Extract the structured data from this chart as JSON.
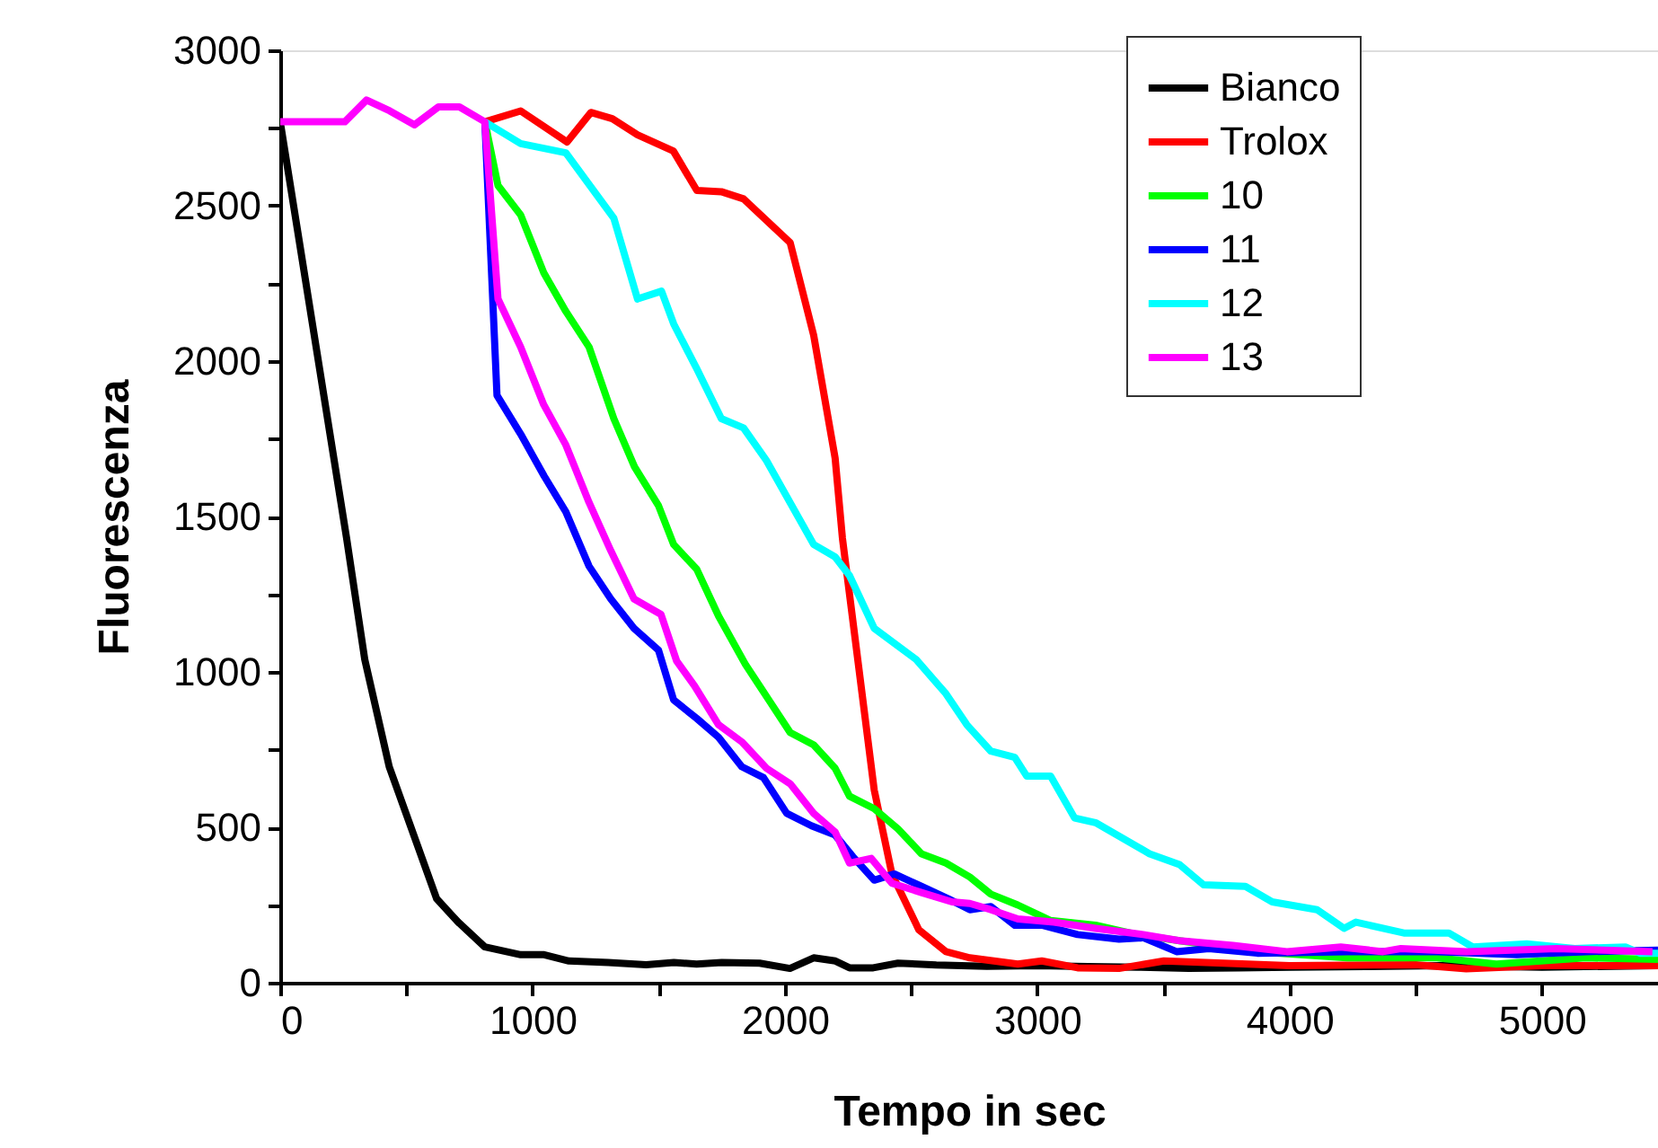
{
  "chart_data": {
    "type": "line",
    "xlabel": "Tempo in sec",
    "ylabel": "Fluorescenza",
    "xlim": [
      0,
      5460
    ],
    "ylim": [
      0,
      3000
    ],
    "xticks": [
      0,
      {
        "value": 500,
        "label": null
      },
      1000,
      {
        "value": 1500,
        "label": null
      },
      2000,
      {
        "value": 2500,
        "label": null
      },
      3000,
      {
        "value": 3500,
        "label": null
      },
      4000,
      {
        "value": 4500,
        "label": null
      },
      5000
    ],
    "yticks": [
      0,
      {
        "value": 250,
        "label": null
      },
      500,
      {
        "value": 750,
        "label": null
      },
      1000,
      {
        "value": 1250,
        "label": null
      },
      1500,
      {
        "value": 1750,
        "label": null
      },
      2000,
      {
        "value": 2250,
        "label": null
      },
      2500,
      {
        "value": 2750,
        "label": null
      },
      3000
    ],
    "grid": false,
    "legend": "top right",
    "marker": "none",
    "line_style": "solid",
    "series": [
      {
        "name": "Bianco",
        "color": "#000000",
        "x": [
          0,
          263,
          335,
          432,
          620,
          705,
          811,
          953,
          1046,
          1144,
          1300,
          1450,
          1560,
          1650,
          1750,
          1900,
          2020,
          2114,
          2200,
          2256,
          2350,
          2448,
          2600,
          2800,
          3000,
          3200,
          3400,
          3600,
          3800,
          4000,
          4300,
          4600,
          5000,
          5460
        ],
        "values": [
          2770,
          1430,
          1040,
          695,
          270,
          195,
          115,
          90,
          90,
          70,
          65,
          58,
          65,
          60,
          65,
          63,
          46,
          80,
          70,
          48,
          48,
          63,
          57,
          53,
          55,
          52,
          50,
          46,
          48,
          50,
          52,
          55,
          50,
          55
        ]
      },
      {
        "name": "Trolox",
        "color": "#ff0000",
        "x": [
          811,
          953,
          1137,
          1231,
          1316,
          1416,
          1558,
          1651,
          1748,
          1836,
          2021,
          2114,
          2199,
          2228,
          2354,
          2424,
          2531,
          2638,
          2733,
          2923,
          3018,
          3160,
          3324,
          3502,
          4000,
          4500,
          4700,
          5000,
          5460
        ],
        "values": [
          2770,
          2805,
          2705,
          2800,
          2780,
          2728,
          2676,
          2549,
          2545,
          2522,
          2381,
          2083,
          1688,
          1430,
          620,
          350,
          170,
          100,
          80,
          60,
          70,
          48,
          46,
          70,
          55,
          58,
          45,
          55,
          55
        ]
      },
      {
        "name": "10",
        "color": "#00ff00",
        "x": [
          811,
          863,
          953,
          1044,
          1132,
          1224,
          1322,
          1404,
          1499,
          1559,
          1651,
          1737,
          1843,
          1936,
          2021,
          2114,
          2199,
          2256,
          2354,
          2448,
          2541,
          2638,
          2733,
          2816,
          2923,
          3053,
          3231,
          3395,
          3564,
          3872,
          4228,
          4584,
          4819,
          5174,
          5460
        ],
        "values": [
          2770,
          2565,
          2470,
          2285,
          2160,
          2045,
          1815,
          1660,
          1535,
          1410,
          1330,
          1180,
          1025,
          910,
          805,
          765,
          690,
          600,
          560,
          495,
          415,
          385,
          340,
          285,
          250,
          200,
          185,
          155,
          135,
          100,
          80,
          80,
          60,
          80,
          75
        ]
      },
      {
        "name": "11",
        "color": "#0000ff",
        "x": [
          811,
          859,
          953,
          1046,
          1132,
          1224,
          1310,
          1402,
          1499,
          1559,
          1651,
          1737,
          1829,
          1915,
          2007,
          2105,
          2199,
          2270,
          2354,
          2434,
          2541,
          2648,
          2733,
          2816,
          2911,
          3018,
          3160,
          3324,
          3420,
          3552,
          3680,
          3872,
          4228,
          4584,
          4900,
          5174,
          5460
        ],
        "values": [
          2770,
          1890,
          1765,
          1630,
          1515,
          1340,
          1235,
          1140,
          1070,
          910,
          850,
          790,
          695,
          660,
          545,
          505,
          475,
          405,
          330,
          350,
          310,
          270,
          235,
          245,
          185,
          185,
          155,
          140,
          145,
          100,
          110,
          95,
          100,
          100,
          90,
          100,
          105
        ]
      },
      {
        "name": "12",
        "color": "#00ffff",
        "x": [
          811,
          953,
          1132,
          1322,
          1416,
          1511,
          1559,
          1651,
          1748,
          1836,
          1927,
          2114,
          2199,
          2256,
          2354,
          2520,
          2638,
          2721,
          2816,
          2911,
          2958,
          3053,
          3148,
          3231,
          3445,
          3564,
          3659,
          3825,
          3931,
          4109,
          4216,
          4263,
          4453,
          4631,
          4726,
          4940,
          5130,
          5331,
          5388,
          5460
        ],
        "values": [
          2770,
          2700,
          2670,
          2460,
          2200,
          2225,
          2120,
          1975,
          1815,
          1785,
          1680,
          1410,
          1370,
          1310,
          1140,
          1040,
          930,
          830,
          745,
          725,
          665,
          665,
          530,
          515,
          415,
          380,
          315,
          310,
          260,
          235,
          175,
          195,
          160,
          160,
          115,
          125,
          110,
          115,
          95,
          95
        ]
      },
      {
        "name": "13",
        "color": "#ff00ff",
        "x": [
          0,
          256,
          342,
          434,
          532,
          627,
          710,
          811,
          863,
          953,
          1044,
          1132,
          1224,
          1310,
          1402,
          1509,
          1571,
          1642,
          1737,
          1829,
          1927,
          2021,
          2114,
          2199,
          2256,
          2342,
          2424,
          2541,
          2662,
          2733,
          2816,
          2923,
          3066,
          3231,
          3420,
          3564,
          3776,
          3989,
          4203,
          4370,
          4441,
          4702,
          5058,
          5438
        ],
        "values": [
          2770,
          2770,
          2840,
          2805,
          2760,
          2818,
          2818,
          2770,
          2200,
          2045,
          1860,
          1730,
          1545,
          1390,
          1235,
          1185,
          1035,
          955,
          830,
          775,
          690,
          640,
          545,
          485,
          385,
          400,
          320,
          290,
          260,
          255,
          235,
          205,
          195,
          175,
          155,
          135,
          120,
          100,
          115,
          100,
          110,
          100,
          110,
          100
        ]
      }
    ]
  }
}
